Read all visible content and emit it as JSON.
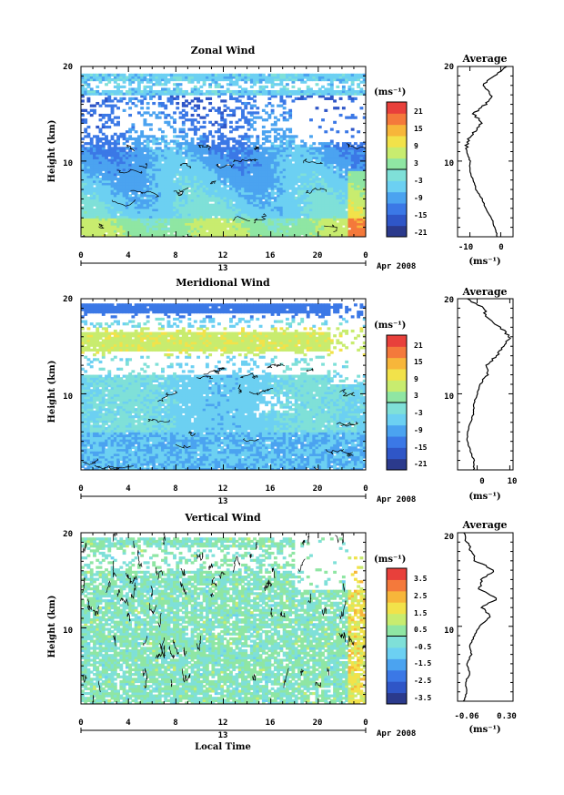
{
  "figure": {
    "xlabel": "Local Time",
    "date_label": "Apr 2008",
    "day_label": "13",
    "ylabel": "Height (km)",
    "unit_label": "(ms⁻¹)",
    "average_title": "Average",
    "average_unit": "(ms⁻¹)"
  },
  "colors": {
    "scale": [
      "#2b3a8c",
      "#2f56c7",
      "#3b78e6",
      "#4ba3f0",
      "#6cd0f2",
      "#7fe0d8",
      "#8fe6a3",
      "#c8ec6f",
      "#f2e24a",
      "#f7b63a",
      "#f4793b",
      "#e8403b"
    ]
  },
  "chart_data": [
    {
      "type": "heatmap",
      "title": "Zonal Wind",
      "x_ticks": [
        "0",
        "4",
        "8",
        "12",
        "16",
        "20",
        "0"
      ],
      "xlim": [
        0,
        24
      ],
      "y_ticks": [
        "10",
        "20"
      ],
      "ylim": [
        2,
        20
      ],
      "colorbar_ticks": [
        "21",
        "15",
        "9",
        "3",
        "-3",
        "-9",
        "-15",
        "-21"
      ],
      "colorbar_range": [
        -24,
        24
      ],
      "average": {
        "title": "Average",
        "x_ticks": [
          "-10",
          "0"
        ],
        "xlim": [
          -14,
          4
        ],
        "y_ticks": [
          "10",
          "20"
        ],
        "height": [
          2,
          3,
          4,
          5,
          6,
          7,
          8,
          9,
          10,
          11,
          12,
          13,
          14,
          15,
          16,
          17,
          18,
          19,
          20
        ],
        "values": [
          -1,
          -2,
          -3,
          -5,
          -6,
          -8,
          -9,
          -10,
          -10,
          -11,
          -11,
          -9,
          -6,
          -9,
          -5,
          -3,
          -6,
          -2,
          2
        ]
      }
    },
    {
      "type": "heatmap",
      "title": "Meridional Wind",
      "x_ticks": [
        "0",
        "4",
        "8",
        "12",
        "16",
        "20",
        "0"
      ],
      "xlim": [
        0,
        24
      ],
      "y_ticks": [
        "10",
        "20"
      ],
      "ylim": [
        2,
        20
      ],
      "colorbar_ticks": [
        "21",
        "15",
        "9",
        "3",
        "-3",
        "-9",
        "-15",
        "-21"
      ],
      "colorbar_range": [
        -24,
        24
      ],
      "average": {
        "title": "Average",
        "x_ticks": [
          "0",
          "10"
        ],
        "xlim": [
          -6,
          11
        ],
        "y_ticks": [
          "10",
          "20"
        ],
        "height": [
          2,
          3,
          4,
          5,
          6,
          7,
          8,
          9,
          10,
          11,
          12,
          13,
          14,
          15,
          16,
          17,
          18,
          19,
          20
        ],
        "values": [
          -1,
          -1,
          -2,
          -3,
          -3,
          -2,
          -1,
          -1,
          0,
          1,
          3,
          3,
          6,
          8,
          10,
          7,
          3,
          2,
          -3
        ]
      }
    },
    {
      "type": "heatmap",
      "title": "Vertical Wind",
      "x_ticks": [
        "0",
        "4",
        "8",
        "12",
        "16",
        "20",
        "0"
      ],
      "xlim": [
        0,
        24
      ],
      "y_ticks": [
        "10",
        "20"
      ],
      "ylim": [
        2,
        20
      ],
      "colorbar_ticks": [
        "3.5",
        "2.5",
        "1.5",
        "0.5",
        "-0.5",
        "-1.5",
        "-2.5",
        "-3.5"
      ],
      "colorbar_range": [
        -4,
        4
      ],
      "average": {
        "title": "Average",
        "x_ticks": [
          "-0.06",
          "0.30"
        ],
        "xlim": [
          -0.06,
          0.3
        ],
        "y_ticks": [
          "10",
          "20"
        ],
        "height": [
          2,
          3,
          4,
          5,
          6,
          7,
          8,
          9,
          10,
          11,
          12,
          13,
          14,
          15,
          16,
          17,
          18,
          19,
          20
        ],
        "values": [
          -0.02,
          0.0,
          -0.01,
          0.02,
          0.0,
          0.03,
          0.02,
          0.05,
          0.08,
          0.15,
          0.1,
          0.2,
          0.08,
          0.1,
          0.18,
          0.05,
          0.03,
          0.0,
          -0.02
        ]
      }
    }
  ]
}
